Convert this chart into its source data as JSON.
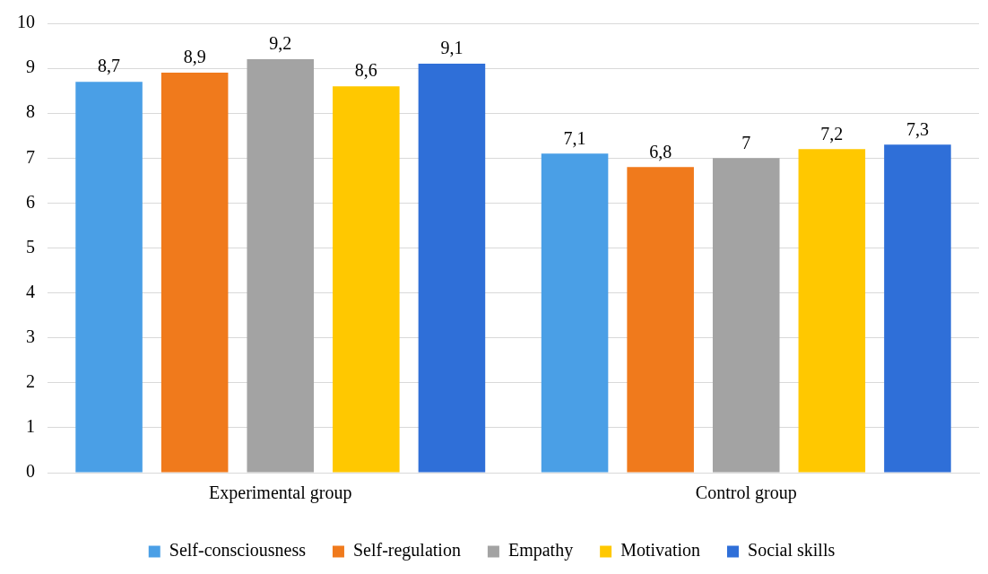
{
  "chart_data": {
    "type": "bar",
    "categories": [
      "Experimental group",
      "Control group"
    ],
    "series": [
      {
        "name": "Self-consciousness",
        "color": "#4a9fe6",
        "values": [
          8.7,
          7.1
        ],
        "value_labels": [
          "8,7",
          "7,1"
        ]
      },
      {
        "name": "Self-regulation",
        "color": "#f07a1c",
        "values": [
          8.9,
          6.8
        ],
        "value_labels": [
          "8,9",
          "6,8"
        ]
      },
      {
        "name": "Empathy",
        "color": "#a3a3a3",
        "values": [
          9.2,
          7
        ],
        "value_labels": [
          "9,2",
          "7"
        ]
      },
      {
        "name": "Motivation",
        "color": "#ffc800",
        "values": [
          8.6,
          7.2
        ],
        "value_labels": [
          "8,6",
          "7,2"
        ]
      },
      {
        "name": "Social skills",
        "color": "#2f6fd8",
        "values": [
          9.1,
          7.3
        ],
        "value_labels": [
          "9,1",
          "7,3"
        ]
      }
    ],
    "ylim": [
      0,
      10
    ],
    "yticks": [
      0,
      1,
      2,
      3,
      4,
      5,
      6,
      7,
      8,
      9,
      10
    ],
    "grid": "y",
    "legend": "bottom"
  }
}
